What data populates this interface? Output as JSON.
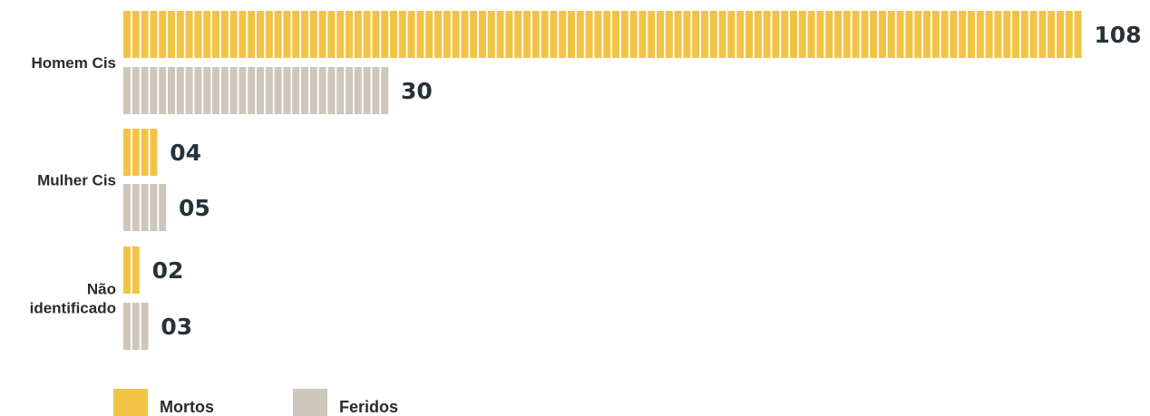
{
  "chart_data": {
    "type": "bar",
    "orientation": "horizontal",
    "title": "",
    "xlabel": "",
    "ylabel": "",
    "categories": [
      "Homem Cis",
      "Mulher Cis",
      "Não identificado"
    ],
    "category_lines": [
      [
        "Homem Cis"
      ],
      [
        "Mulher Cis"
      ],
      [
        "Não",
        "identificado"
      ]
    ],
    "series": [
      {
        "name": "Mortos",
        "values": [
          108,
          4,
          2
        ],
        "labels": [
          "108",
          "04",
          "02"
        ],
        "color": "#f2c445"
      },
      {
        "name": "Feridos",
        "values": [
          30,
          5,
          3
        ],
        "labels": [
          "30",
          "05",
          "03"
        ],
        "color": "#cdc7bb"
      }
    ],
    "xlim": [
      0,
      108
    ],
    "grid": false,
    "legend": "bottom-left",
    "mark_style": "unit-stripes"
  }
}
